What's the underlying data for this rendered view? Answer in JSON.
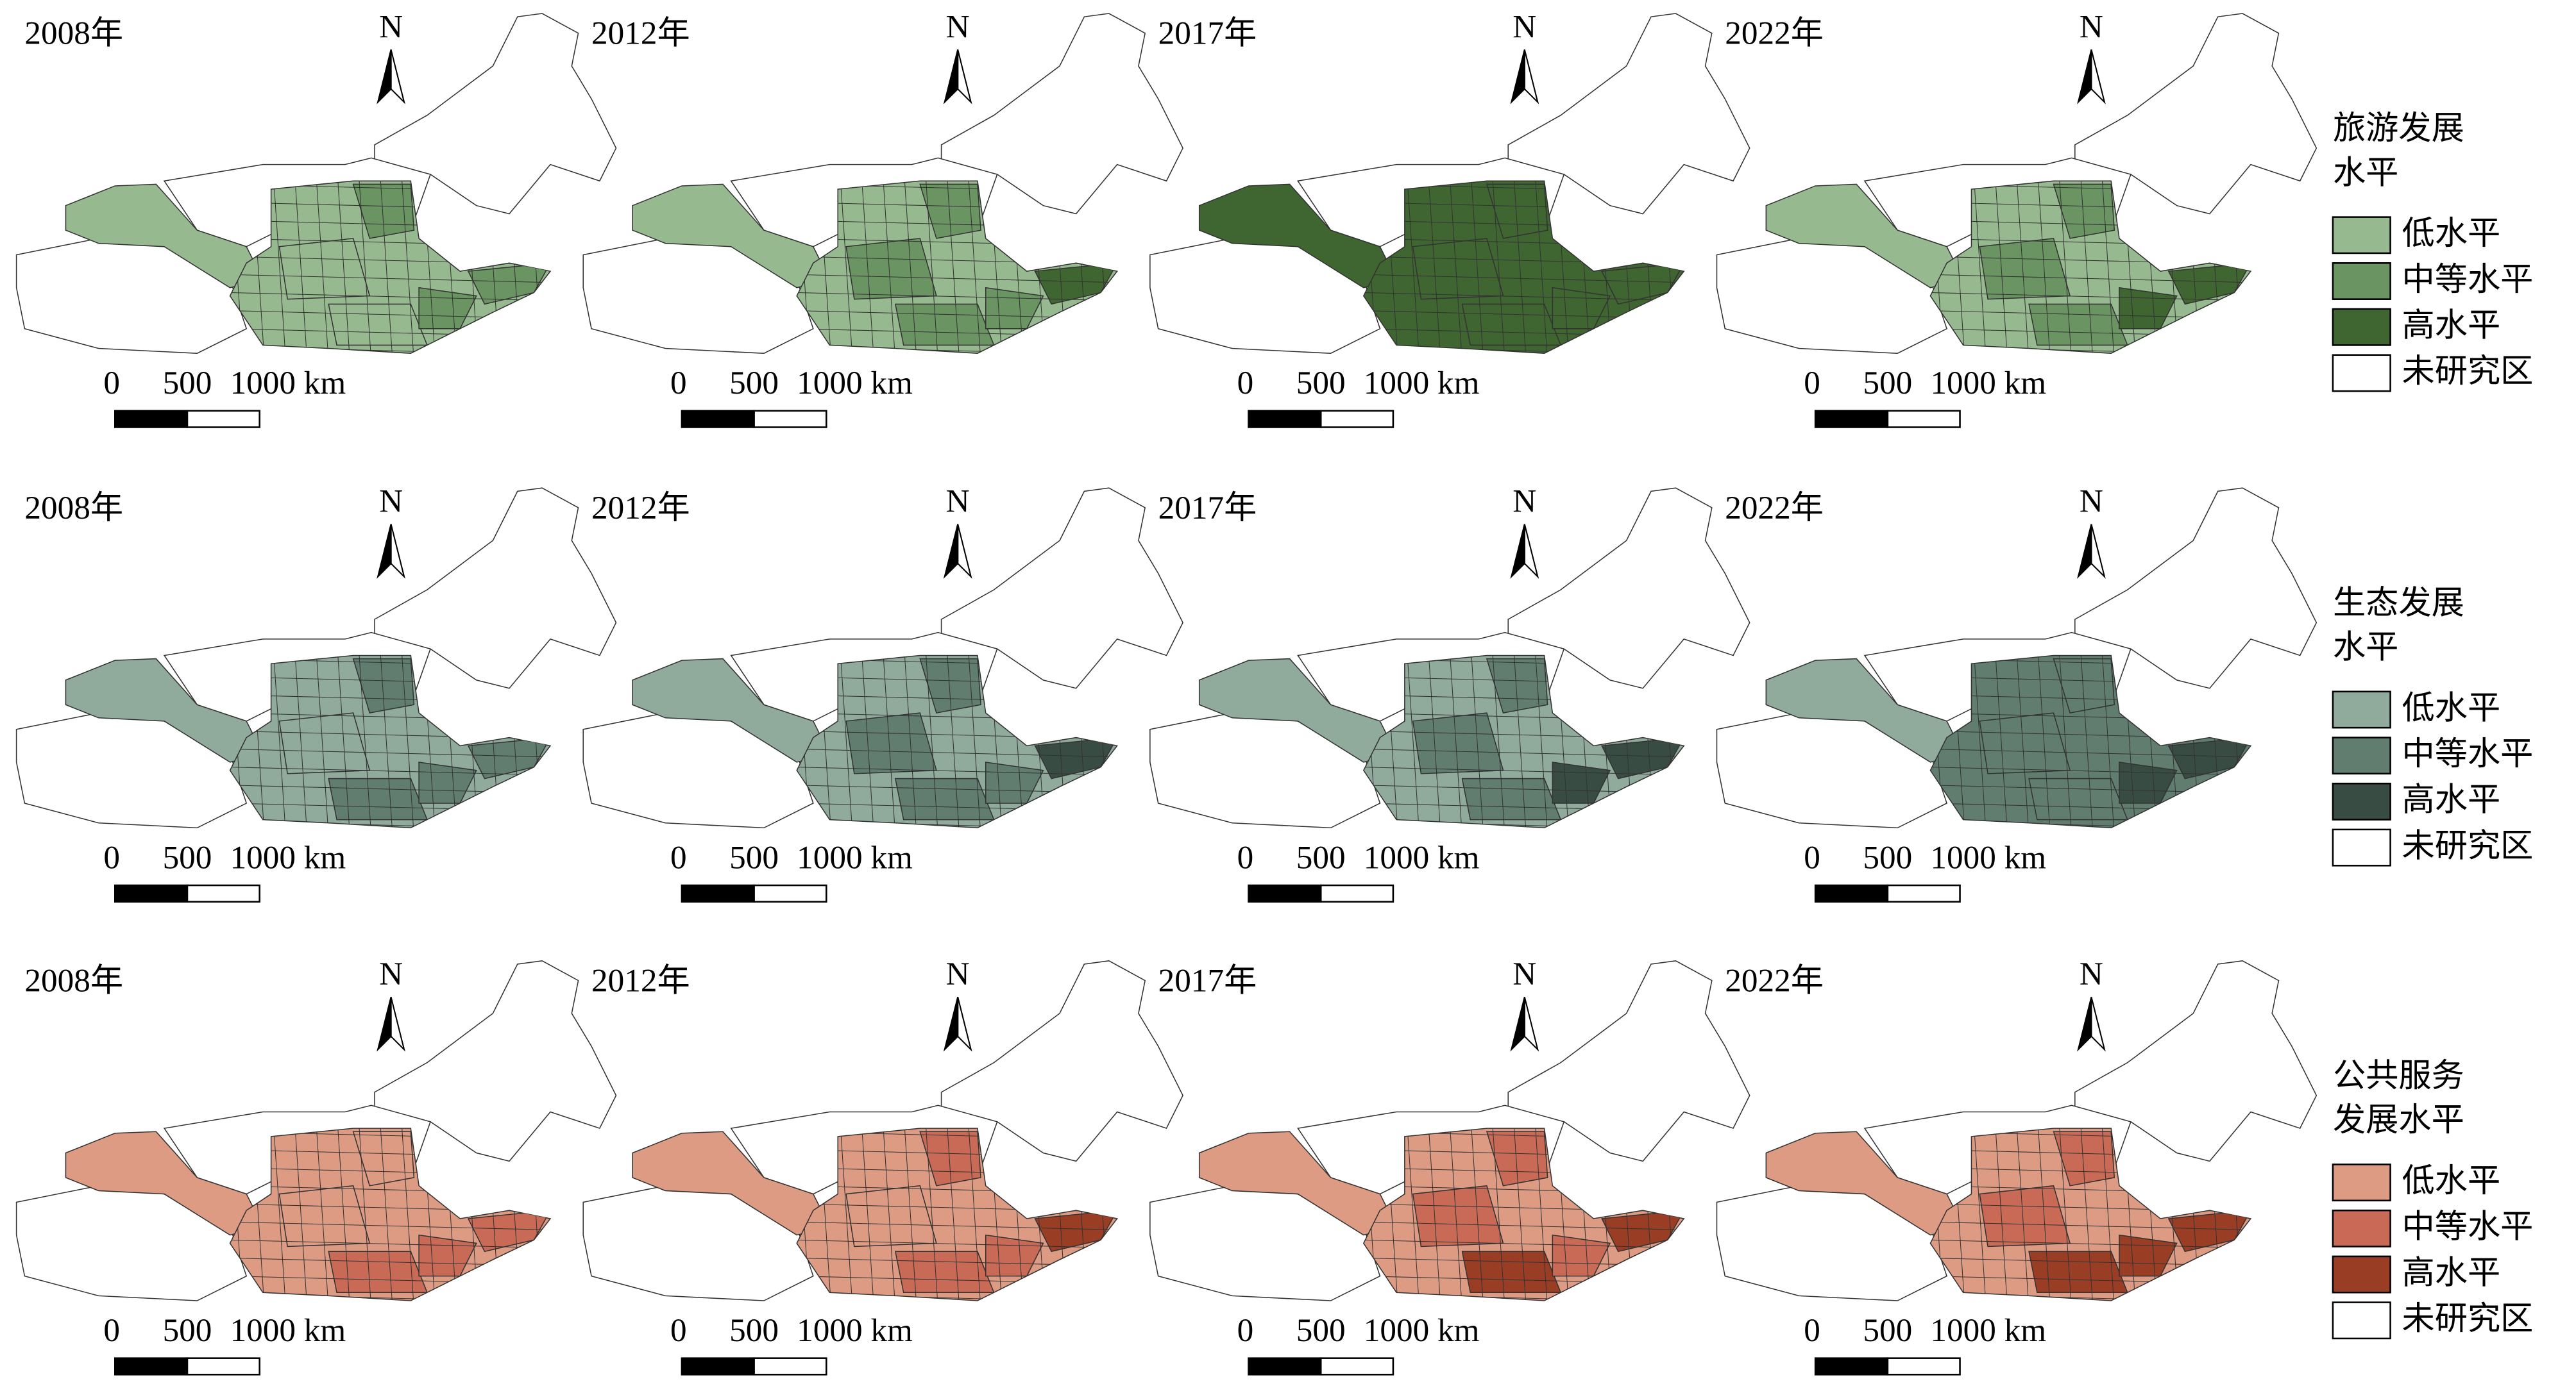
{
  "years": [
    "2008年",
    "2012年",
    "2017年",
    "2022年"
  ],
  "north": "N",
  "scale_labels": [
    "0",
    "500",
    "1000 km"
  ],
  "legends": [
    {
      "title": [
        "旅游发展",
        "水平"
      ],
      "items": [
        {
          "label": "低水平",
          "color": "#97b98f"
        },
        {
          "label": "中等水平",
          "color": "#6b9463"
        },
        {
          "label": "高水平",
          "color": "#3f6531"
        },
        {
          "label": "未研究区",
          "color": "#ffffff"
        }
      ]
    },
    {
      "title": [
        "生态发展",
        "水平"
      ],
      "items": [
        {
          "label": "低水平",
          "color": "#90aa9c"
        },
        {
          "label": "中等水平",
          "color": "#607d70"
        },
        {
          "label": "高水平",
          "color": "#384c43"
        },
        {
          "label": "未研究区",
          "color": "#ffffff"
        }
      ]
    },
    {
      "title": [
        "公共服务",
        "发展水平"
      ],
      "items": [
        {
          "label": "低水平",
          "color": "#dd9b84"
        },
        {
          "label": "中等水平",
          "color": "#c86a56"
        },
        {
          "label": "高水平",
          "color": "#9a3d25"
        },
        {
          "label": "未研究区",
          "color": "#ffffff"
        }
      ]
    }
  ]
}
